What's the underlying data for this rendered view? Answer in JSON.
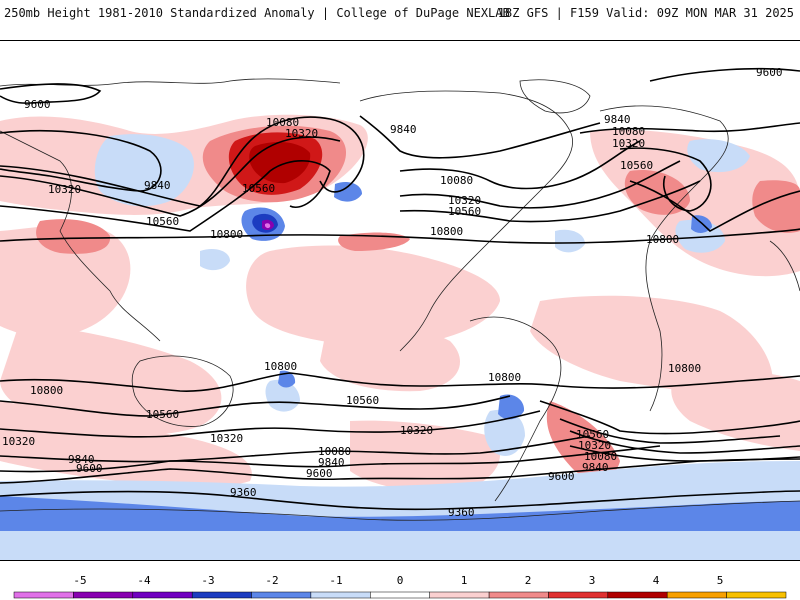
{
  "header": {
    "left": "250mb Height 1981-2010 Standardized Anomaly | College of DuPage NEXLAB",
    "right": "18Z GFS | F159 Valid: 09Z MON MAR 31 2025"
  },
  "colors": {
    "ocean": "#ffffff",
    "coast": "#222222",
    "contour": "#000000",
    "pos1": "#fbd0d0",
    "pos2": "#f08a8a",
    "pos3": "#d01818",
    "pos4": "#b00000",
    "neg1": "#c8dcf8",
    "neg2": "#5c86e8",
    "neg3": "#1c3cc0",
    "neg4": "#8800b0",
    "neg5": "#e070e8"
  },
  "contour_labels": [
    {
      "text": "9600"
    },
    {
      "text": "9840"
    },
    {
      "text": "10320"
    },
    {
      "text": "10560"
    },
    {
      "text": "10800"
    },
    {
      "text": "10080"
    },
    {
      "text": "10320"
    },
    {
      "text": "10560"
    },
    {
      "text": "9840"
    },
    {
      "text": "10080"
    },
    {
      "text": "10320"
    },
    {
      "text": "10560"
    },
    {
      "text": "10800"
    },
    {
      "text": "9840"
    },
    {
      "text": "10080"
    },
    {
      "text": "10320"
    },
    {
      "text": "10560"
    },
    {
      "text": "10800"
    },
    {
      "text": "9600"
    },
    {
      "text": "10800"
    },
    {
      "text": "10800"
    },
    {
      "text": "10800"
    },
    {
      "text": "10560"
    },
    {
      "text": "10560"
    },
    {
      "text": "10320"
    },
    {
      "text": "10320"
    },
    {
      "text": "10320"
    },
    {
      "text": "10080"
    },
    {
      "text": "9840"
    },
    {
      "text": "9840"
    },
    {
      "text": "9600"
    },
    {
      "text": "9600"
    },
    {
      "text": "9360"
    },
    {
      "text": "9360"
    },
    {
      "text": "10800"
    },
    {
      "text": "10560"
    },
    {
      "text": "10320"
    },
    {
      "text": "10080"
    },
    {
      "text": "9840"
    },
    {
      "text": "9600"
    }
  ],
  "legend": {
    "ticks": [
      "-5",
      "-4",
      "-3",
      "-2",
      "-1",
      "0",
      "1",
      "2",
      "3",
      "4",
      "5"
    ],
    "colors": [
      "#e070e8",
      "#8800b0",
      "#7000c0",
      "#1c3cc0",
      "#5c86e8",
      "#c8dcf8",
      "#ffffff",
      "#fbd0d0",
      "#f08a8a",
      "#e03030",
      "#b00000",
      "#f8a000",
      "#f8c000"
    ]
  }
}
